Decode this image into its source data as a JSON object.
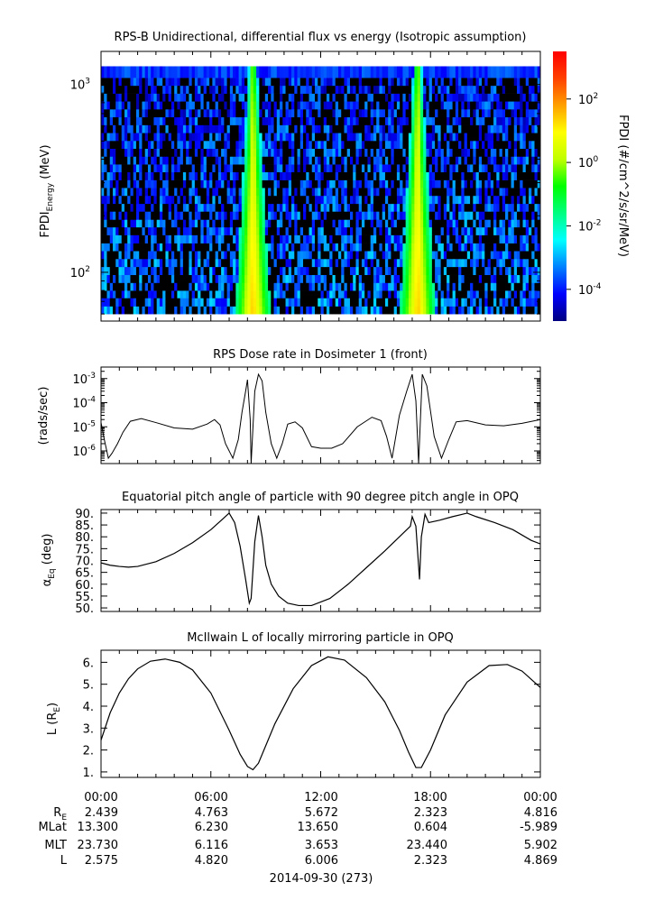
{
  "figure": {
    "date_label": "2014-09-30 (273)",
    "ephemeris": {
      "row_labels": [
        "R_E",
        "MLat",
        "MLT",
        "L"
      ],
      "columns": [
        {
          "time": "00:00",
          "values": [
            "2.439",
            "13.300",
            "23.730",
            "2.575"
          ]
        },
        {
          "time": "06:00",
          "values": [
            "4.763",
            "6.230",
            "6.116",
            "4.820"
          ]
        },
        {
          "time": "12:00",
          "values": [
            "5.672",
            "13.650",
            "3.653",
            "6.006"
          ]
        },
        {
          "time": "18:00",
          "values": [
            "2.323",
            "0.604",
            "23.440",
            "2.323"
          ]
        },
        {
          "time": "00:00",
          "values": [
            "4.816",
            "-5.989",
            "5.902",
            "4.869"
          ]
        }
      ]
    }
  },
  "chart_data": [
    {
      "type": "heatmap",
      "title": "RPS-B  Unidirectional, differential flux vs energy (Isotropic assumption)",
      "ylabel": "FPDI_Energy (MeV)",
      "yscale": "log",
      "ylim": [
        55,
        1500
      ],
      "y_ticks": [
        "10^2",
        "10^3"
      ],
      "xlim_hours": [
        0,
        24
      ],
      "colorbar": {
        "label": "FPDI (#/cm^2/s/sr/MeV)",
        "scale": "log",
        "range_log10": [
          -5,
          3.5
        ],
        "ticks": [
          "10^-4",
          "10^-2",
          "10^0",
          "10^2"
        ],
        "colors": [
          "#000080",
          "#0000ff",
          "#0080ff",
          "#00ffff",
          "#00ff80",
          "#00ff00",
          "#c0ff00",
          "#ffff00",
          "#ffa000",
          "#ff4000",
          "#ff0000"
        ]
      },
      "energy_bands_mev": [
        60,
        66,
        73,
        80,
        88,
        97,
        107,
        118,
        130,
        143,
        158,
        174,
        191,
        211,
        232,
        256,
        282,
        310,
        342,
        376,
        414,
        456,
        502,
        553,
        609,
        671,
        739,
        814,
        896,
        987,
        1087,
        1250
      ],
      "peak_times_hours": [
        8.3,
        17.3
      ],
      "peak_flux_log10": 1.5,
      "background_flux_log10": -3.0
    },
    {
      "type": "line",
      "title": "RPS  Dose rate in Dosimeter 1 (front)",
      "ylabel": "(rads/sec)",
      "yscale": "log",
      "ylim": [
        3e-07,
        0.003
      ],
      "y_ticks": [
        "10^-6",
        "10^-5",
        "10^-4",
        "10^-3"
      ],
      "xlim_hours": [
        0,
        24
      ],
      "x": [
        0,
        0.2,
        0.4,
        0.6,
        0.9,
        1.2,
        1.6,
        2.2,
        3.0,
        4.0,
        5.0,
        5.8,
        6.2,
        6.5,
        6.8,
        7.2,
        7.5,
        7.7,
        7.9,
        8.0,
        8.15,
        8.2,
        8.4,
        8.6,
        8.8,
        9.0,
        9.3,
        9.6,
        9.9,
        10.2,
        10.6,
        11.0,
        11.5,
        12.0,
        12.6,
        13.2,
        14.0,
        14.8,
        15.3,
        15.6,
        15.9,
        16.3,
        16.7,
        17.0,
        17.2,
        17.35,
        17.55,
        17.8,
        18.2,
        18.6,
        19.0,
        19.4,
        20.0,
        21.0,
        22.0,
        23.0,
        24.0
      ],
      "y": [
        1.5e-05,
        2.5e-06,
        5e-07,
        8e-07,
        2e-06,
        6e-06,
        1.7e-05,
        2.2e-05,
        1.5e-05,
        9e-06,
        8e-06,
        1.3e-05,
        2e-05,
        1.2e-05,
        2e-06,
        5e-07,
        3e-06,
        4e-05,
        0.0003,
        0.0009,
        2e-05,
        3e-07,
        0.0003,
        0.0015,
        0.0008,
        4e-05,
        2e-06,
        5e-07,
        2e-06,
        1.3e-05,
        1.6e-05,
        9e-06,
        1.5e-06,
        1.3e-06,
        1.3e-06,
        2e-06,
        1e-05,
        2.5e-05,
        1.8e-05,
        4e-06,
        5e-07,
        3e-05,
        0.0003,
        0.0015,
        0.00012,
        3e-07,
        0.0015,
        0.0005,
        4e-06,
        5e-07,
        3e-06,
        1.6e-05,
        1.8e-05,
        1.2e-05,
        1.1e-05,
        1.4e-05,
        2e-05
      ]
    },
    {
      "type": "line",
      "title": "Equatorial pitch angle of particle with 90 degree pitch angle in OPQ",
      "ylabel": "α_Eq (deg)",
      "ylim": [
        48.5,
        91.5
      ],
      "y_ticks": [
        50,
        55,
        60,
        65,
        70,
        75,
        80,
        85,
        90
      ],
      "xlim_hours": [
        0,
        24
      ],
      "x": [
        0,
        0.5,
        1.0,
        1.5,
        2.0,
        3.0,
        4.0,
        5.0,
        6.0,
        6.5,
        7.0,
        7.3,
        7.6,
        7.9,
        8.1,
        8.2,
        8.4,
        8.6,
        8.8,
        9.0,
        9.3,
        9.7,
        10.2,
        10.8,
        11.5,
        12.5,
        13.5,
        14.5,
        15.5,
        16.5,
        16.9,
        17.0,
        17.2,
        17.4,
        17.5,
        17.7,
        17.9,
        18.5,
        19.2,
        20.0,
        20.5,
        21.5,
        22.5,
        23.5,
        24.0
      ],
      "y": [
        69,
        68,
        67.5,
        67.2,
        67.5,
        69.5,
        73,
        77.5,
        83,
        86.5,
        90,
        86,
        76,
        62,
        52,
        54,
        78,
        89,
        80,
        68,
        60,
        55,
        52,
        51,
        51,
        54,
        60,
        67,
        74,
        81.5,
        84.5,
        88.5,
        84.5,
        62,
        80,
        89.5,
        86,
        87,
        88.5,
        90,
        88.5,
        86,
        83,
        78.5,
        77
      ]
    },
    {
      "type": "line",
      "title": "McIlwain L of locally mirroring particle in OPQ",
      "ylabel": "L (R_E)",
      "ylim": [
        0.75,
        6.55
      ],
      "y_ticks": [
        1,
        2,
        3,
        4,
        5,
        6
      ],
      "xlim_hours": [
        0,
        24
      ],
      "x": [
        0,
        0.5,
        1.0,
        1.5,
        2.0,
        2.7,
        3.5,
        4.3,
        5.0,
        6.0,
        7.0,
        7.6,
        8.0,
        8.3,
        8.6,
        9.0,
        9.5,
        10.5,
        11.5,
        12.4,
        13.3,
        14.5,
        15.5,
        16.3,
        16.8,
        17.2,
        17.5,
        18.0,
        18.8,
        20.0,
        21.2,
        22.2,
        23.0,
        24.0
      ],
      "y": [
        2.45,
        3.7,
        4.6,
        5.25,
        5.7,
        6.05,
        6.15,
        6.0,
        5.65,
        4.6,
        2.9,
        1.8,
        1.25,
        1.1,
        1.4,
        2.2,
        3.2,
        4.8,
        5.85,
        6.25,
        6.1,
        5.3,
        4.2,
        2.9,
        1.9,
        1.2,
        1.2,
        2.0,
        3.6,
        5.1,
        5.85,
        5.9,
        5.6,
        4.85
      ]
    }
  ]
}
